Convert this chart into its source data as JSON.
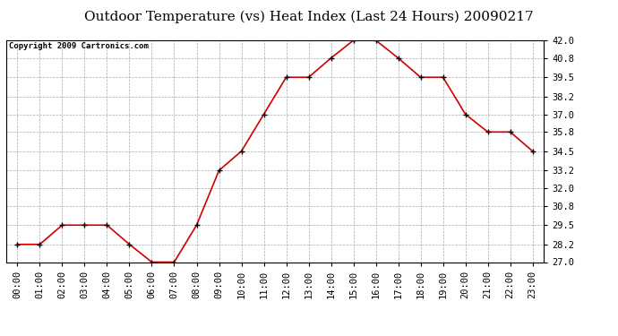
{
  "title": "Outdoor Temperature (vs) Heat Index (Last 24 Hours) 20090217",
  "copyright": "Copyright 2009 Cartronics.com",
  "x_labels": [
    "00:00",
    "01:00",
    "02:00",
    "03:00",
    "04:00",
    "05:00",
    "06:00",
    "07:00",
    "08:00",
    "09:00",
    "10:00",
    "11:00",
    "12:00",
    "13:00",
    "14:00",
    "15:00",
    "16:00",
    "17:00",
    "18:00",
    "19:00",
    "20:00",
    "21:00",
    "22:00",
    "23:00"
  ],
  "y_values": [
    28.2,
    28.2,
    29.5,
    29.5,
    29.5,
    28.2,
    27.0,
    27.0,
    29.5,
    33.2,
    34.5,
    37.0,
    39.5,
    39.5,
    40.8,
    42.0,
    42.0,
    40.8,
    39.5,
    39.5,
    37.0,
    35.8,
    35.8,
    34.5
  ],
  "ylim": [
    27.0,
    42.0
  ],
  "yticks": [
    27.0,
    28.2,
    29.5,
    30.8,
    32.0,
    33.2,
    34.5,
    35.8,
    37.0,
    38.2,
    39.5,
    40.8,
    42.0
  ],
  "line_color": "#cc0000",
  "marker": "+",
  "marker_color": "#000000",
  "background_color": "#ffffff",
  "plot_bg_color": "#ffffff",
  "grid_color": "#aaaaaa",
  "title_fontsize": 11,
  "copyright_fontsize": 6.5,
  "tick_fontsize": 7.5
}
